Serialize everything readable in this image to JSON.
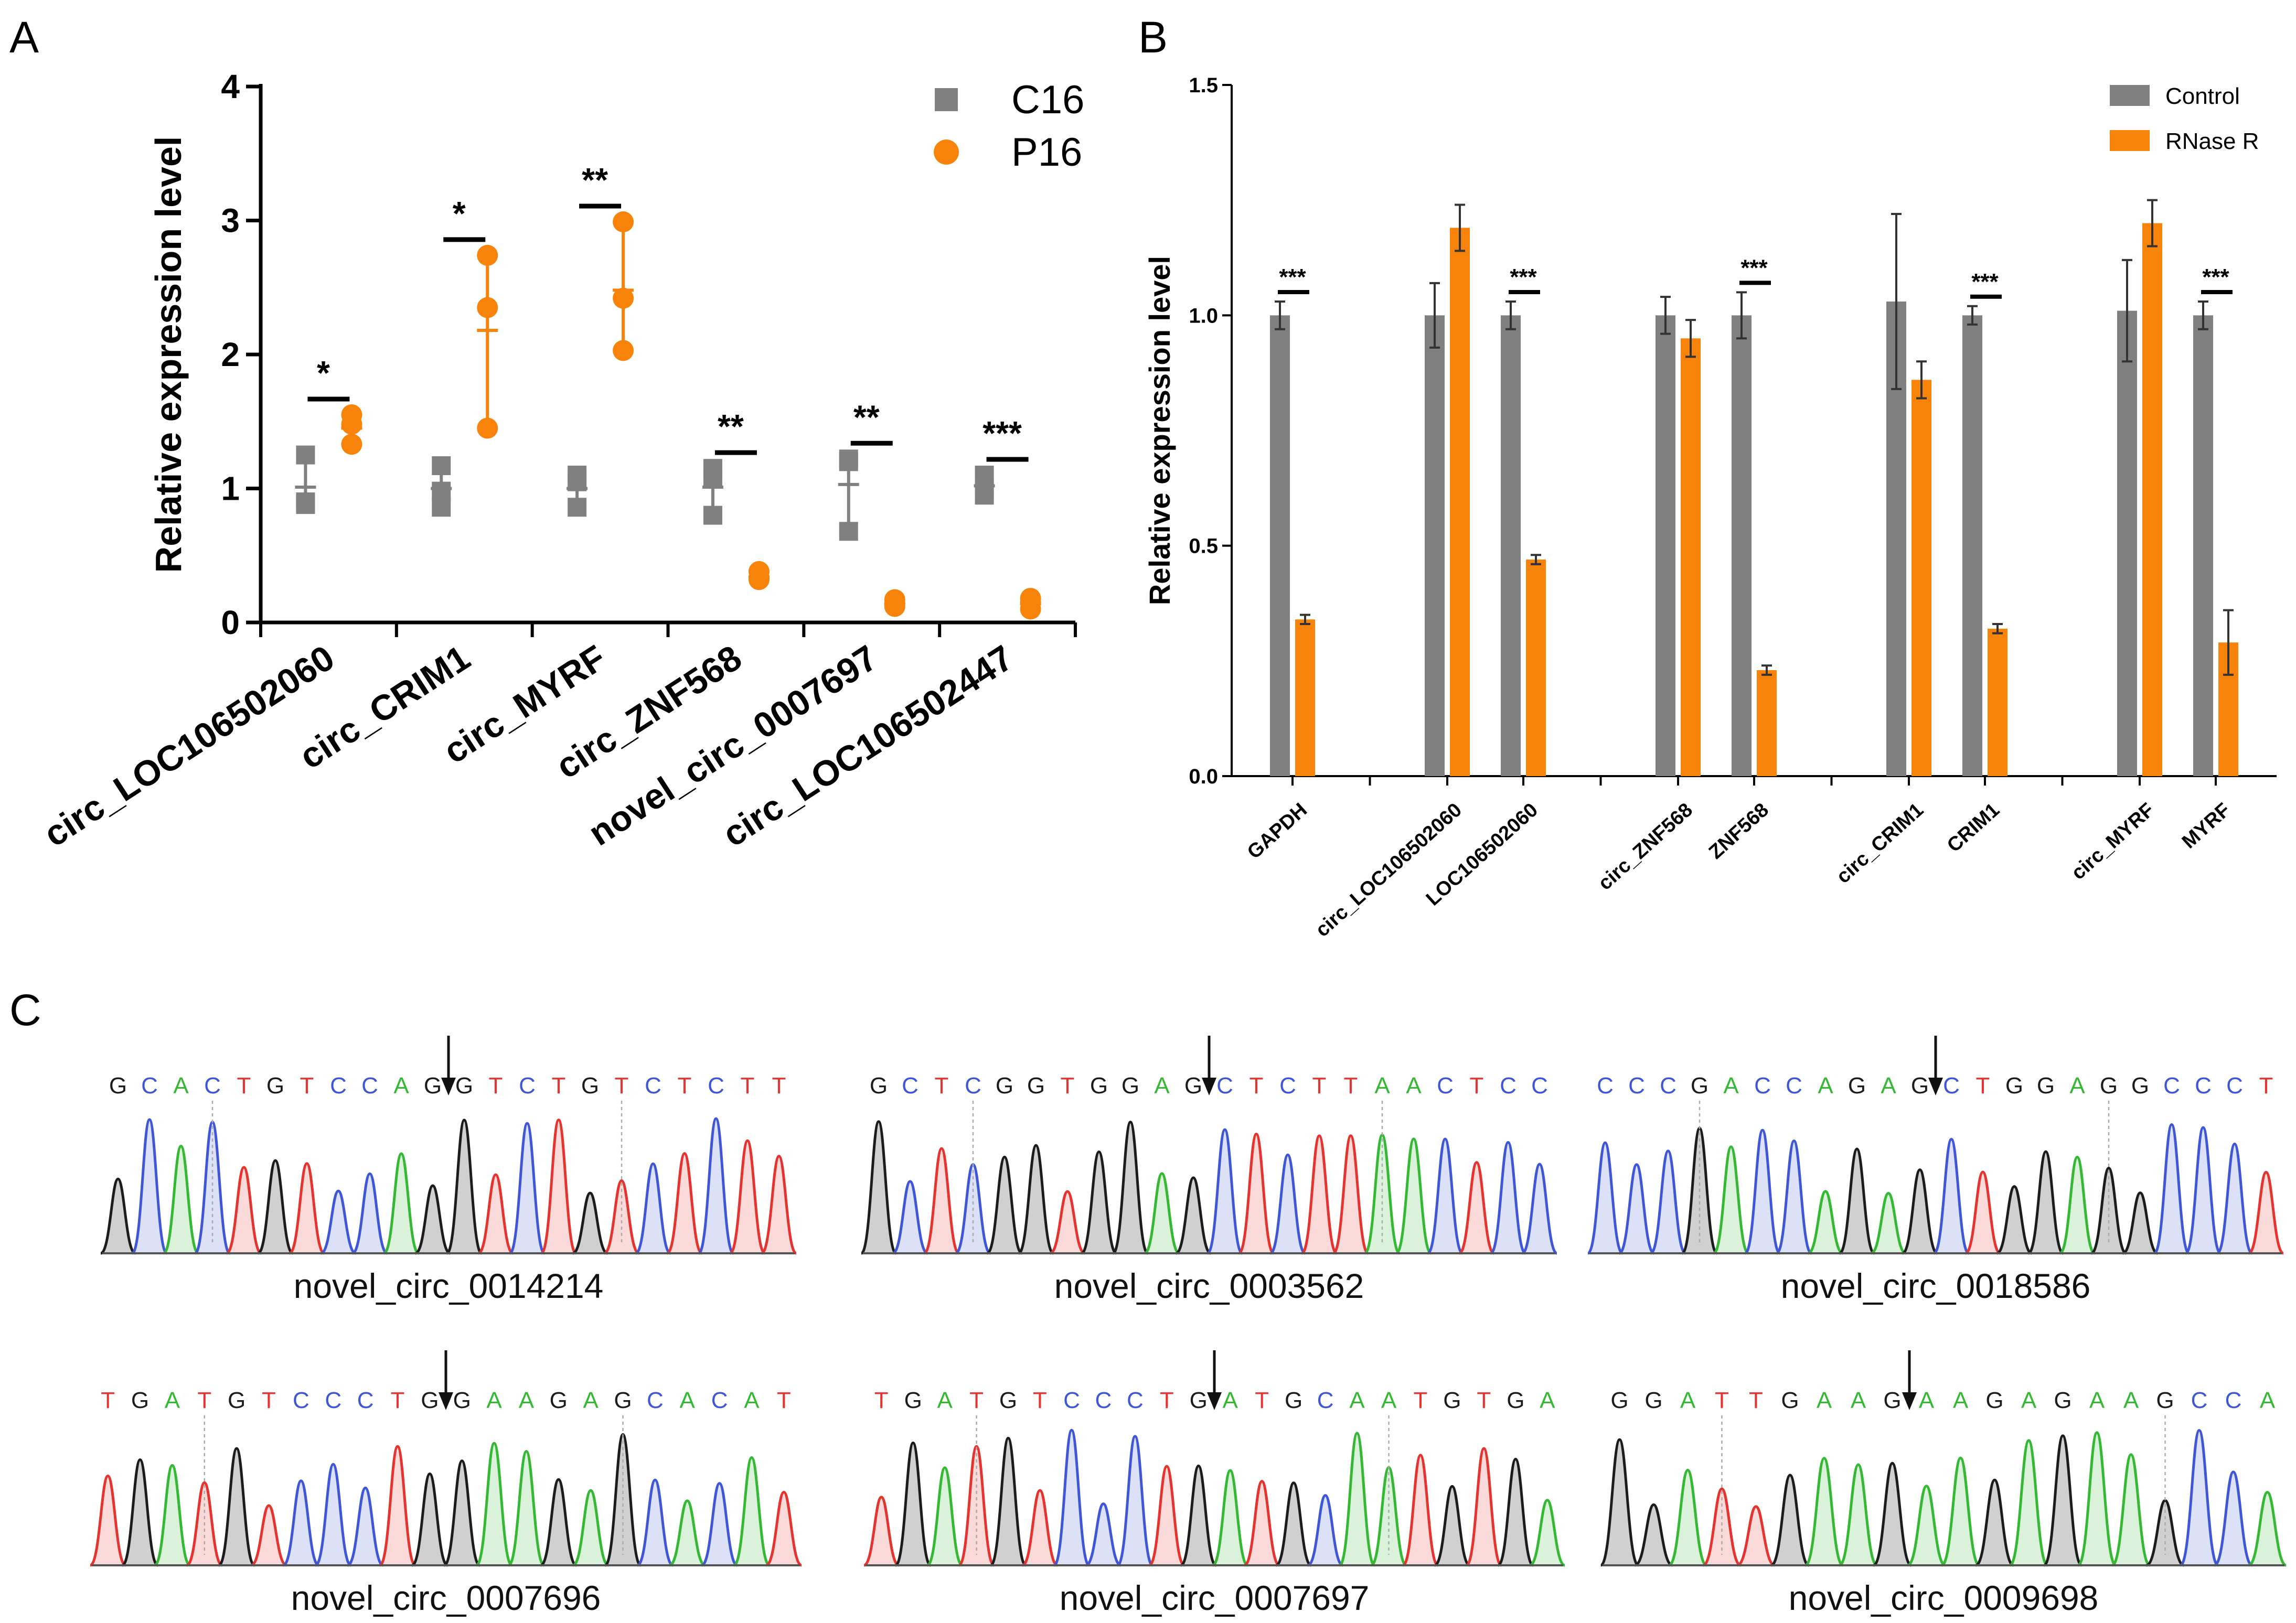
{
  "panel_labels": {
    "a": "A",
    "b": "B",
    "c": "C"
  },
  "colors": {
    "c16": "#808080",
    "p16": "#f7830a",
    "base_A": "#35b834",
    "base_C": "#3f57d6",
    "base_G": "#1c1c1c",
    "base_T": "#e5342f"
  },
  "chart_data": [
    {
      "type": "scatter",
      "panel": "A",
      "ylabel": "Relative expression level",
      "ylim": [
        0,
        4
      ],
      "yticks": [
        "0",
        "1",
        "2",
        "3",
        "4"
      ],
      "categories": [
        "circ_LOC106502060",
        "circ_CRIM1",
        "circ_MYRF",
        "circ_ZNF568",
        "novel_circ_0007697",
        "circ_LOC106502447"
      ],
      "legend": [
        "C16",
        "P16"
      ],
      "series": [
        {
          "name": "C16",
          "points": [
            [
              1.25,
              0.9,
              0.88
            ],
            [
              1.17,
              0.98,
              0.86
            ],
            [
              1.1,
              1.05,
              0.86
            ],
            [
              1.15,
              1.07,
              0.8
            ],
            [
              1.22,
              1.2,
              0.68
            ],
            [
              1.1,
              1.0,
              0.95
            ]
          ],
          "mean": [
            1.01,
            1.0,
            1.0,
            1.01,
            1.03,
            1.02
          ]
        },
        {
          "name": "P16",
          "points": [
            [
              1.55,
              1.48,
              1.33
            ],
            [
              2.74,
              2.35,
              1.45
            ],
            [
              2.99,
              2.42,
              2.03
            ],
            [
              0.38,
              0.33,
              0.32
            ],
            [
              0.17,
              0.14,
              0.12
            ],
            [
              0.18,
              0.15,
              0.1
            ]
          ],
          "mean": [
            1.45,
            2.18,
            2.48,
            0.34,
            0.14,
            0.14
          ]
        }
      ],
      "significance": [
        "*",
        "*",
        "**",
        "**",
        "**",
        "***"
      ]
    },
    {
      "type": "bar",
      "panel": "B",
      "ylabel": "Relative expression level",
      "ylim": [
        0,
        1.5
      ],
      "yticks": [
        "0.0",
        "0.5",
        "1.0",
        "1.5"
      ],
      "legend": [
        "Control",
        "RNase R"
      ],
      "categories": [
        "GAPDH",
        "circ_LOC106502060",
        "LOC106502060",
        "circ_ZNF568",
        "ZNF568",
        "circ_CRIM1",
        "CRIM1",
        "circ_MYRF",
        "MYRF"
      ],
      "series": [
        {
          "name": "Control",
          "values": [
            1.0,
            1.0,
            1.0,
            1.0,
            1.0,
            1.03,
            1.0,
            1.01,
            1.0
          ],
          "errors": [
            0.03,
            0.07,
            0.03,
            0.04,
            0.05,
            0.19,
            0.02,
            0.11,
            0.03
          ]
        },
        {
          "name": "RNase R",
          "values": [
            0.34,
            1.19,
            0.47,
            0.95,
            0.23,
            0.86,
            0.32,
            1.2,
            0.29
          ],
          "errors": [
            0.01,
            0.05,
            0.01,
            0.04,
            0.01,
            0.04,
            0.01,
            0.05,
            0.07
          ]
        }
      ],
      "significance": [
        "***",
        "",
        "***",
        "",
        "***",
        "",
        "***",
        "",
        "***"
      ]
    }
  ],
  "traces": [
    {
      "name": "novel_circ_0014214",
      "sequence": "GCACTGTCCAGGTCTGTCTCTT",
      "junction_after": 11
    },
    {
      "name": "novel_circ_0003562",
      "sequence": "GCTCGGTGGAGCTCTTAACTCC",
      "junction_after": 11
    },
    {
      "name": "novel_circ_0018586",
      "sequence": "CCCGACCAGAGCTGGAGGCCCT",
      "junction_after": 11
    },
    {
      "name": "novel_circ_0007696",
      "sequence": "TGATGTCCCTGGAAGAGCACAT",
      "junction_after": 11
    },
    {
      "name": "novel_circ_0007697",
      "sequence": "TGATGTCCCTGATGCAATGTGA",
      "junction_after": 11
    },
    {
      "name": "novel_circ_0009698",
      "sequence": "GGATTGAAGAAGAGAAGCCA",
      "junction_after": 9
    }
  ]
}
